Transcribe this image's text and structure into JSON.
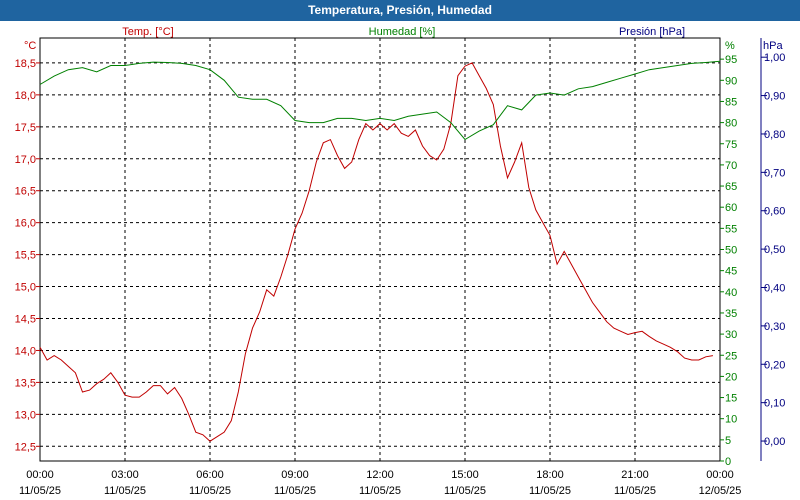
{
  "window": {
    "title": "Temperatura, Presión, Humedad"
  },
  "chart_data": {
    "type": "line",
    "title": "Temperatura, Presión, Humedad",
    "x_range": [
      0,
      24
    ],
    "x_ticks": [
      {
        "h": 0,
        "time": "00:00",
        "date": "11/05/25"
      },
      {
        "h": 3,
        "time": "03:00",
        "date": "11/05/25"
      },
      {
        "h": 6,
        "time": "06:00",
        "date": "11/05/25"
      },
      {
        "h": 9,
        "time": "09:00",
        "date": "11/05/25"
      },
      {
        "h": 12,
        "time": "12:00",
        "date": "11/05/25"
      },
      {
        "h": 15,
        "time": "15:00",
        "date": "11/05/25"
      },
      {
        "h": 18,
        "time": "18:00",
        "date": "11/05/25"
      },
      {
        "h": 21,
        "time": "21:00",
        "date": "11/05/25"
      },
      {
        "h": 24,
        "time": "00:00",
        "date": "12/05/25"
      }
    ],
    "grid": true,
    "axes": {
      "temp": {
        "label": "Temp. [°C]",
        "unit": "°C",
        "color": "#c00000",
        "range": [
          12.27,
          18.89
        ],
        "ticks": [
          "12,5",
          "13,0",
          "13,5",
          "14,0",
          "14,5",
          "15,0",
          "15,5",
          "16,0",
          "16,5",
          "17,0",
          "17,5",
          "18,0",
          "18,5"
        ],
        "tick_values": [
          12.5,
          13.0,
          13.5,
          14.0,
          14.5,
          15.0,
          15.5,
          16.0,
          16.5,
          17.0,
          17.5,
          18.0,
          18.5
        ]
      },
      "hum": {
        "label": "Humedad [%]",
        "unit": "%",
        "color": "#008000",
        "range": [
          0,
          100
        ],
        "ticks": [
          "0",
          "5",
          "10",
          "15",
          "20",
          "25",
          "30",
          "35",
          "40",
          "45",
          "50",
          "55",
          "60",
          "65",
          "70",
          "75",
          "80",
          "85",
          "90",
          "95"
        ],
        "tick_values": [
          0,
          5,
          10,
          15,
          20,
          25,
          30,
          35,
          40,
          45,
          50,
          55,
          60,
          65,
          70,
          75,
          80,
          85,
          90,
          95
        ]
      },
      "pres": {
        "label": "Presión [hPa]",
        "unit": "hPa",
        "color": "#000080",
        "range": [
          -0.052,
          1.05
        ],
        "ticks": [
          "0,00",
          "0,10",
          "0,20",
          "0,30",
          "0,40",
          "0,50",
          "0,60",
          "0,70",
          "0,80",
          "0,90",
          "1,00"
        ],
        "tick_values": [
          0.0,
          0.1,
          0.2,
          0.3,
          0.4,
          0.5,
          0.6,
          0.7,
          0.8,
          0.9,
          1.0
        ]
      }
    },
    "series": [
      {
        "name": "Temp. [°C]",
        "axis": "temp",
        "color": "#c00000",
        "x": [
          0,
          0.25,
          0.5,
          0.75,
          1,
          1.25,
          1.5,
          1.75,
          2,
          2.25,
          2.5,
          2.75,
          3,
          3.25,
          3.5,
          3.75,
          4,
          4.25,
          4.5,
          4.75,
          5,
          5.25,
          5.5,
          5.75,
          6,
          6.25,
          6.5,
          6.75,
          7,
          7.25,
          7.5,
          7.75,
          8,
          8.25,
          8.5,
          8.75,
          9,
          9.25,
          9.5,
          9.75,
          10,
          10.25,
          10.5,
          10.75,
          11,
          11.25,
          11.5,
          11.75,
          12,
          12.25,
          12.5,
          12.75,
          13,
          13.25,
          13.5,
          13.75,
          14,
          14.25,
          14.5,
          14.75,
          15,
          15.25,
          15.5,
          15.75,
          16,
          16.25,
          16.5,
          16.75,
          17,
          17.25,
          17.5,
          17.75,
          18,
          18.25,
          18.5,
          18.75,
          19,
          19.25,
          19.5,
          19.75,
          20,
          20.25,
          20.5,
          20.75,
          21,
          21.25,
          21.5,
          21.75,
          22,
          22.25,
          22.5,
          22.75,
          23,
          23.25,
          23.5,
          23.75
        ],
        "y": [
          14.05,
          13.85,
          13.92,
          13.85,
          13.75,
          13.65,
          13.35,
          13.38,
          13.48,
          13.55,
          13.65,
          13.5,
          13.3,
          13.27,
          13.27,
          13.35,
          13.45,
          13.45,
          13.32,
          13.42,
          13.25,
          13.0,
          12.72,
          12.68,
          12.58,
          12.65,
          12.72,
          12.9,
          13.35,
          13.95,
          14.35,
          14.6,
          14.95,
          14.85,
          15.15,
          15.5,
          15.9,
          16.15,
          16.5,
          16.95,
          17.25,
          17.3,
          17.05,
          16.85,
          16.95,
          17.3,
          17.55,
          17.45,
          17.55,
          17.45,
          17.55,
          17.4,
          17.35,
          17.45,
          17.2,
          17.05,
          16.98,
          17.15,
          17.55,
          18.3,
          18.45,
          18.5,
          18.3,
          18.1,
          17.85,
          17.2,
          16.7,
          16.95,
          17.25,
          16.55,
          16.2,
          16.0,
          15.8,
          15.35,
          15.55,
          15.35,
          15.15,
          14.95,
          14.75,
          14.6,
          14.45,
          14.35,
          14.3,
          14.25,
          14.28,
          14.3,
          14.22,
          14.15,
          14.1,
          14.05,
          13.98,
          13.88,
          13.85,
          13.85,
          13.9,
          13.92
        ]
      },
      {
        "name": "Humedad [%]",
        "axis": "hum",
        "color": "#008000",
        "x": [
          0,
          0.5,
          1,
          1.5,
          2,
          2.5,
          3,
          3.5,
          4,
          4.5,
          5,
          5.5,
          6,
          6.5,
          7,
          7.5,
          8,
          8.5,
          9,
          9.5,
          10,
          10.5,
          11,
          11.5,
          12,
          12.5,
          13,
          13.5,
          14,
          14.5,
          15,
          15.5,
          16,
          16.5,
          17,
          17.5,
          18,
          18.5,
          19,
          19.5,
          20,
          20.5,
          21,
          21.5,
          22,
          22.5,
          23,
          23.5,
          24
        ],
        "y": [
          89,
          91,
          92.5,
          93,
          92,
          93.5,
          93.5,
          94,
          94.3,
          94.2,
          94,
          93.5,
          92.5,
          90,
          86,
          85.5,
          85.5,
          84,
          80.5,
          80,
          80,
          81,
          81,
          80.5,
          81,
          80.5,
          81.5,
          82,
          82.5,
          80,
          76,
          78,
          79.5,
          84,
          83,
          86.5,
          87,
          86.5,
          88,
          88.5,
          89.5,
          90.5,
          91.5,
          92.5,
          93,
          93.5,
          94,
          94.2,
          94.5
        ]
      },
      {
        "name": "Presión [hPa]",
        "axis": "pres",
        "color": "#000080",
        "x": [],
        "y": []
      }
    ]
  }
}
